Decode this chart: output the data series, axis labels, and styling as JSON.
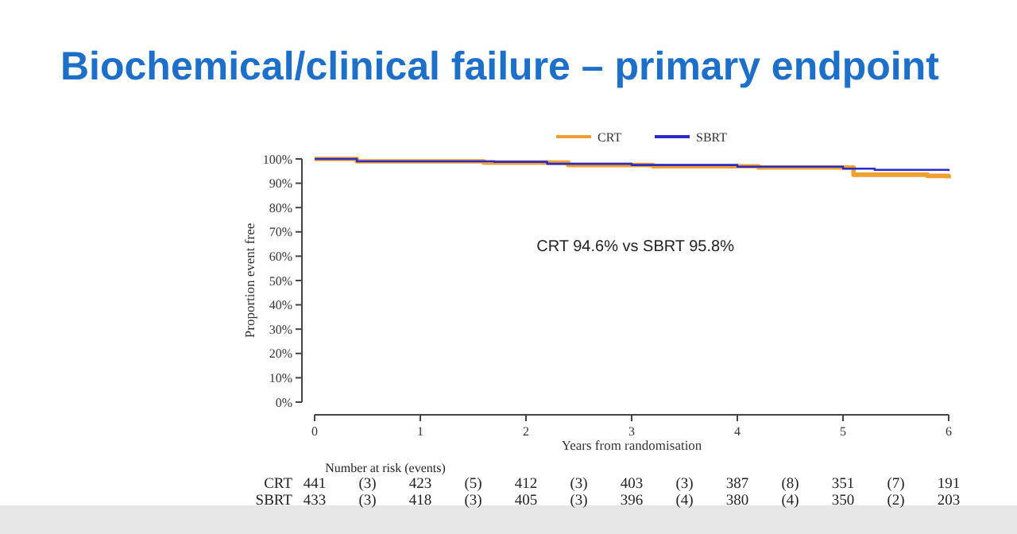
{
  "chart_data": {
    "type": "step",
    "title": "Biochemical/clinical failure – primary endpoint",
    "xlabel": "Years from randomisation",
    "ylabel": "Proportion event free",
    "legend": "top",
    "grid": false,
    "xlim": [
      0,
      6
    ],
    "xticks": [
      0,
      1,
      2,
      3,
      4,
      5,
      6
    ],
    "ylim": [
      0,
      100
    ],
    "yticks": [
      {
        "value": 0,
        "label": "0%"
      },
      {
        "value": 10,
        "label": "10%"
      },
      {
        "value": 20,
        "label": "20%"
      },
      {
        "value": 30,
        "label": "30%"
      },
      {
        "value": 40,
        "label": "40%"
      },
      {
        "value": 50,
        "label": "50%"
      },
      {
        "value": 60,
        "label": "60%"
      },
      {
        "value": 70,
        "label": "70%"
      },
      {
        "value": 80,
        "label": "80%"
      },
      {
        "value": 90,
        "label": "90%"
      },
      {
        "value": 100,
        "label": "100%"
      }
    ],
    "series": [
      {
        "name": "CRT",
        "color": "#f0a030",
        "x": [
          0,
          0.4,
          1.6,
          2.4,
          3.2,
          4.2,
          5.1,
          5.8,
          6
        ],
        "values": [
          100,
          99,
          98.5,
          97.5,
          97,
          96.5,
          93.5,
          93,
          92
        ]
      },
      {
        "name": "SBRT",
        "color": "#2b2bc8",
        "x": [
          0,
          0.4,
          1.7,
          2.2,
          3,
          4,
          5,
          5.3,
          6
        ],
        "values": [
          100,
          99,
          98.8,
          98,
          97.5,
          96.8,
          96,
          95.5,
          95
        ]
      }
    ],
    "annotations": [
      "CRT 94.6% vs SBRT 95.8%",
      "Number at risk (events)",
      "CRT 441 (3) 423 (5) 412 (3) 403 (3) 387 (8) 351 (7) 191",
      "SBRT 433 (3) 418 (3) 405 (3) 396 (4) 380 (4) 350 (2) 203"
    ]
  }
}
